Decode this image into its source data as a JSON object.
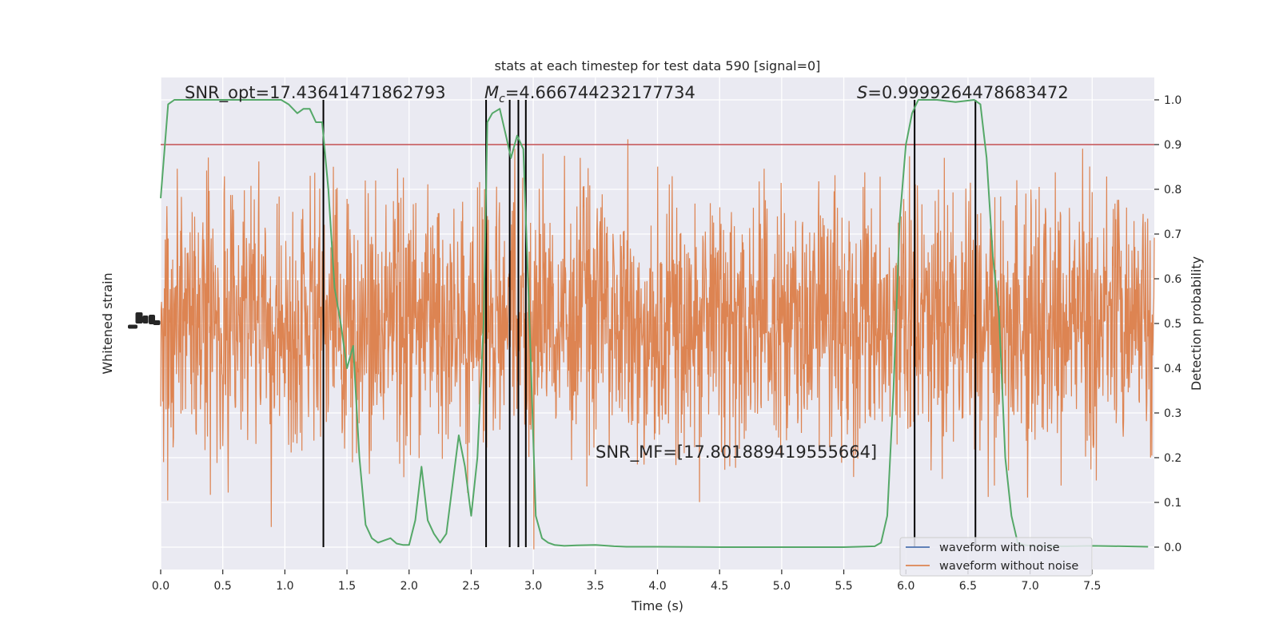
{
  "chart_data": {
    "type": "line",
    "title": "stats at each timestep for test data 590 [signal=0]",
    "xlabel": "Time (s)",
    "ylabel_left": "Whitened strain",
    "ylabel_right": "Detection probability",
    "xlim": [
      0,
      8
    ],
    "ylim_right": [
      -0.05,
      1.05
    ],
    "x_ticks": [
      "0.0",
      "0.5",
      "1.0",
      "1.5",
      "2.0",
      "2.5",
      "3.0",
      "3.5",
      "4.0",
      "4.5",
      "5.0",
      "5.5",
      "6.0",
      "6.5",
      "7.0",
      "7.5"
    ],
    "y_ticks_right": [
      "0.0",
      "0.1",
      "0.2",
      "0.3",
      "0.4",
      "0.5",
      "0.6",
      "0.7",
      "0.8",
      "0.9",
      "1.0"
    ],
    "grid": true,
    "threshold": 0.9,
    "annotations": {
      "snr_opt": "SNR_opt=17.43641471862793",
      "mc_symbol": "M",
      "mc_sub": "c",
      "mc_value": "=4.666744232177734",
      "s_symbol": "S",
      "s_value": "=0.9999264478683472",
      "snr_mf": "SNR_MF=[17.801889419555664]"
    },
    "vertical_lines_x": [
      1.31,
      2.62,
      2.81,
      2.88,
      2.94,
      6.07,
      6.56
    ],
    "legend": {
      "position": "lower-right",
      "entries": [
        {
          "label": "waveform with noise",
          "color": "#4c72b0"
        },
        {
          "label": "waveform without noise",
          "color": "#dd8452"
        }
      ]
    },
    "series": [
      {
        "name": "Detection probability",
        "color": "#55a868",
        "x": [
          0.0,
          0.06,
          0.11,
          0.5,
          0.97,
          1.03,
          1.1,
          1.15,
          1.2,
          1.25,
          1.3,
          1.35,
          1.4,
          1.45,
          1.5,
          1.55,
          1.6,
          1.65,
          1.7,
          1.75,
          1.8,
          1.85,
          1.9,
          1.95,
          2.0,
          2.05,
          2.1,
          2.15,
          2.2,
          2.25,
          2.3,
          2.35,
          2.4,
          2.45,
          2.5,
          2.55,
          2.6,
          2.63,
          2.67,
          2.73,
          2.78,
          2.82,
          2.87,
          2.92,
          2.97,
          3.02,
          3.07,
          3.12,
          3.17,
          3.25,
          3.35,
          3.5,
          3.65,
          3.75,
          4.0,
          4.5,
          5.0,
          5.5,
          5.75,
          5.8,
          5.85,
          5.9,
          5.95,
          6.0,
          6.05,
          6.1,
          6.15,
          6.25,
          6.4,
          6.55,
          6.6,
          6.65,
          6.7,
          6.75,
          6.8,
          6.85,
          6.9,
          6.95,
          7.0,
          7.1,
          7.3,
          7.5,
          7.95
        ],
        "y": [
          0.78,
          0.99,
          1.0,
          1.0,
          1.0,
          0.99,
          0.97,
          0.98,
          0.98,
          0.95,
          0.95,
          0.8,
          0.58,
          0.5,
          0.4,
          0.45,
          0.2,
          0.05,
          0.02,
          0.01,
          0.015,
          0.02,
          0.008,
          0.005,
          0.005,
          0.06,
          0.18,
          0.06,
          0.03,
          0.01,
          0.03,
          0.14,
          0.25,
          0.18,
          0.07,
          0.2,
          0.5,
          0.95,
          0.97,
          0.98,
          0.92,
          0.87,
          0.92,
          0.89,
          0.5,
          0.07,
          0.02,
          0.01,
          0.005,
          0.003,
          0.004,
          0.005,
          0.002,
          0.001,
          0.001,
          0.0,
          0.0,
          0.0,
          0.002,
          0.01,
          0.07,
          0.35,
          0.73,
          0.9,
          0.97,
          1.0,
          1.0,
          1.0,
          0.995,
          1.0,
          0.99,
          0.87,
          0.65,
          0.52,
          0.2,
          0.07,
          0.01,
          0.005,
          0.003,
          0.002,
          0.002,
          0.003,
          0.001
        ]
      }
    ]
  }
}
